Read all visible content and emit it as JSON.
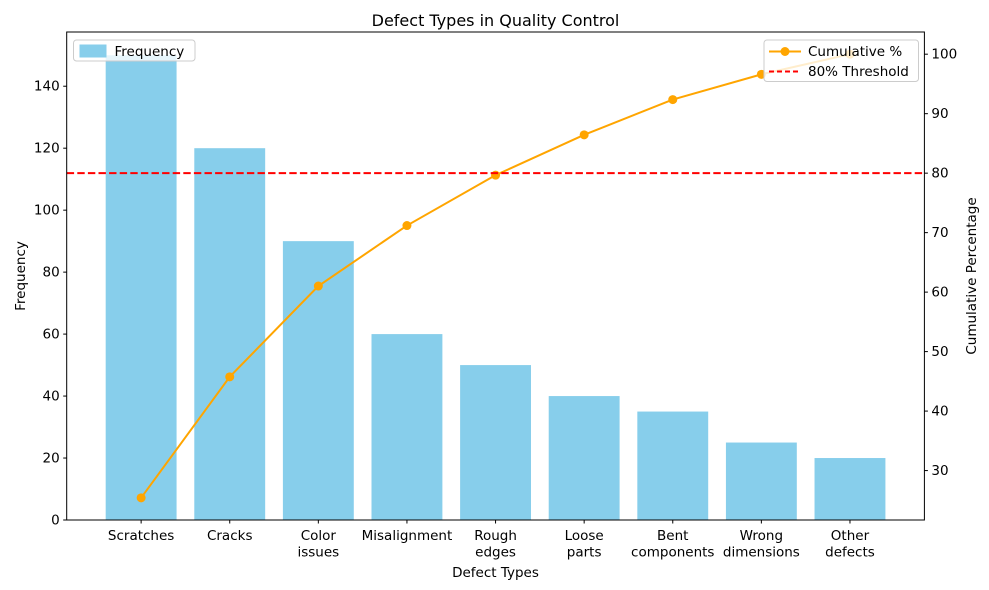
{
  "chart_data": {
    "type": "bar",
    "subtype": "pareto",
    "title": "Defect Types in Quality Control",
    "categories": [
      "Scratches",
      "Cracks",
      "Color\nissues",
      "Misalignment",
      "Rough\nedges",
      "Loose\nparts",
      "Bent\ncomponents",
      "Wrong\ndimensions",
      "Other\ndefects"
    ],
    "series": [
      {
        "name": "Frequency",
        "kind": "bar",
        "axis": "left",
        "color": "#87CEEB",
        "values": [
          150,
          120,
          90,
          60,
          50,
          40,
          35,
          25,
          20
        ]
      },
      {
        "name": "Cumulative %",
        "kind": "line",
        "axis": "right",
        "color": "#FFA500",
        "marker": "circle",
        "values": [
          25.42,
          45.76,
          61.02,
          71.19,
          79.66,
          86.44,
          92.37,
          96.61,
          100.0
        ]
      }
    ],
    "threshold_line": {
      "name": "80% Threshold",
      "value": 80,
      "axis": "right",
      "color": "#FF0000",
      "style": "dashed"
    },
    "xlabel": "Defect Types",
    "ylabel_left": "Frequency",
    "ylabel_right": "Cumulative Percentage",
    "yticks_left": [
      0,
      20,
      40,
      60,
      80,
      100,
      120,
      140
    ],
    "yticks_right": [
      30,
      40,
      50,
      60,
      70,
      80,
      90,
      100
    ],
    "ylim_left": [
      0,
      157.5
    ],
    "ylim_right": [
      21.69,
      103.73
    ],
    "xlim": [
      -0.84,
      8.84
    ],
    "bar_width": 0.8,
    "grid": false,
    "legend_left": {
      "entries": [
        "Frequency"
      ],
      "position": "upper-left"
    },
    "legend_right": {
      "entries": [
        "Cumulative %",
        "80% Threshold"
      ],
      "position": "upper-right"
    }
  }
}
